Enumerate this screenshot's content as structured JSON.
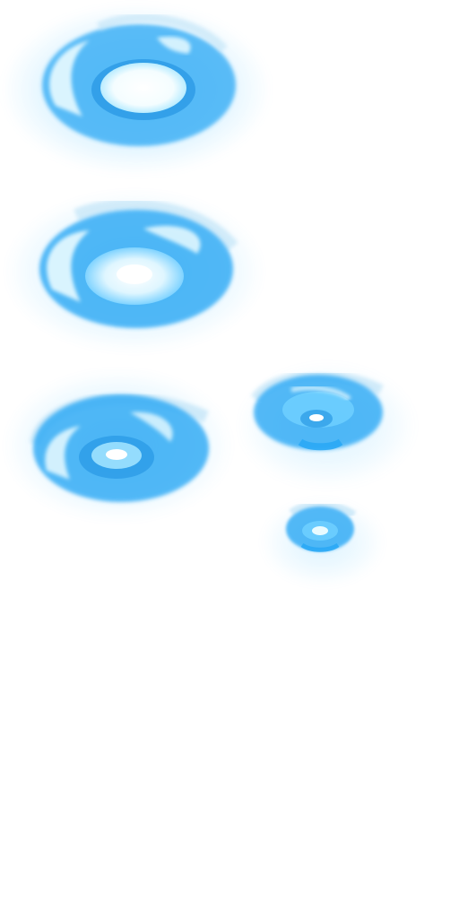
{
  "sprite_sheet": {
    "colors": {
      "background": "#ffffff",
      "glow": "#4fc3ff",
      "ring": "#2aa8f5",
      "ring_dark": "#1e8fe0",
      "highlight": "#e9fbff",
      "core": "#f4fdff",
      "smoke": "#bfe3f7"
    },
    "frames": [
      {
        "name": "vortex-frame-1",
        "icon": "energy-vortex-icon"
      },
      {
        "name": "vortex-frame-2",
        "icon": "energy-vortex-icon"
      },
      {
        "name": "vortex-frame-3",
        "icon": "energy-vortex-icon"
      },
      {
        "name": "vortex-frame-4",
        "icon": "energy-vortex-icon"
      },
      {
        "name": "vortex-frame-5",
        "icon": "energy-vortex-icon"
      }
    ]
  }
}
